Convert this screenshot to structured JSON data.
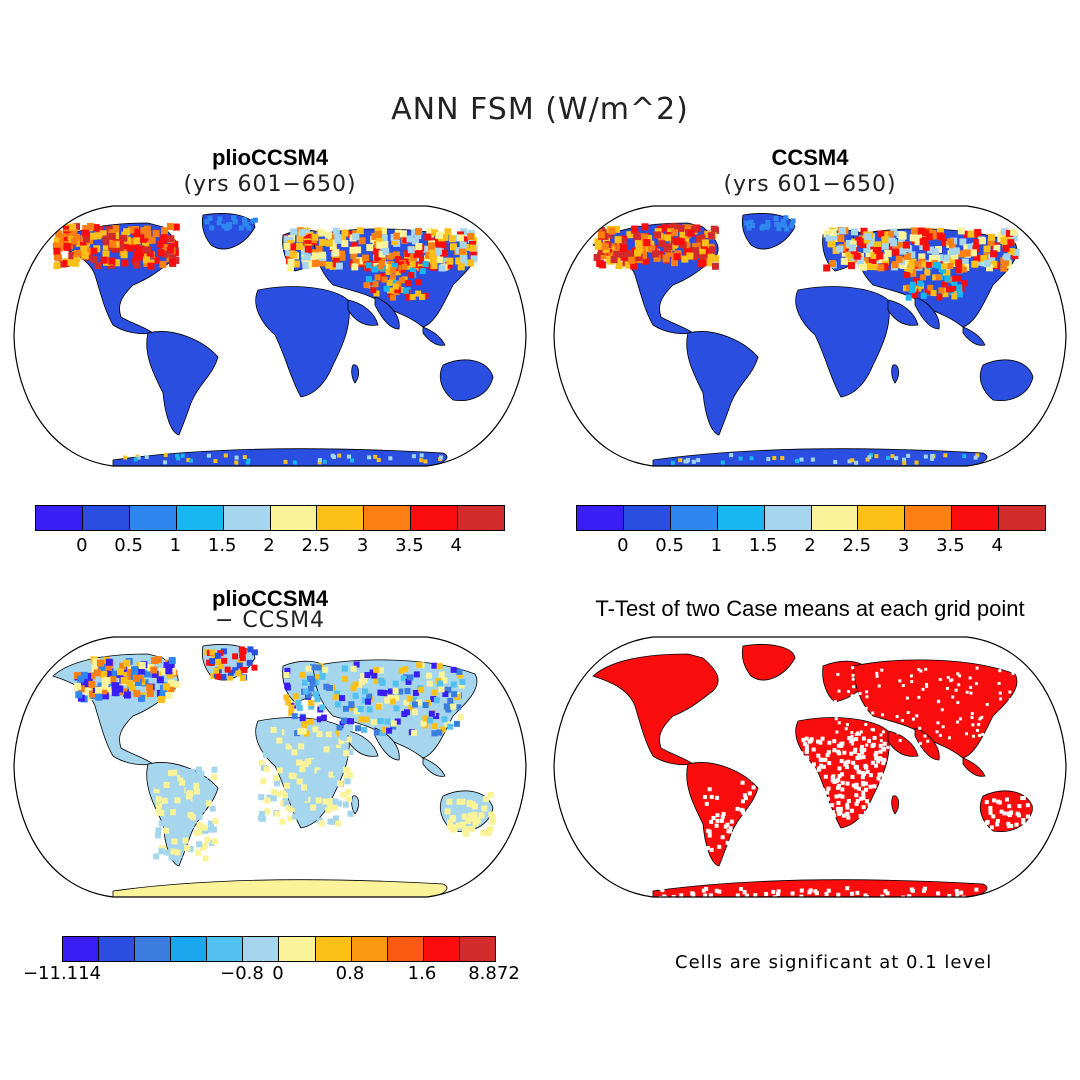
{
  "figure": {
    "title": "ANN FSM (W/m^2)",
    "note": "Cells are significant at 0.1 level"
  },
  "panels": [
    {
      "id": "p1",
      "title": "plioCCSM4",
      "subtitle": "(yrs 601−650)",
      "colorbar": {
        "colors": [
          "#3a1ef5",
          "#2a4fe0",
          "#2e86ee",
          "#19b7f2",
          "#a5d6ee",
          "#fbf39a",
          "#fcc019",
          "#fb7f12",
          "#fb0d0d",
          "#d22b2b"
        ],
        "ticks": [
          "0",
          "0.5",
          "1",
          "1.5",
          "2",
          "2.5",
          "3",
          "3.5",
          "4"
        ]
      }
    },
    {
      "id": "p2",
      "title": "CCSM4",
      "subtitle": "(yrs 601−650)",
      "colorbar": {
        "colors": [
          "#3a1ef5",
          "#2a4fe0",
          "#2e86ee",
          "#19b7f2",
          "#a5d6ee",
          "#fbf39a",
          "#fcc019",
          "#fb7f12",
          "#fb0d0d",
          "#d22b2b"
        ],
        "ticks": [
          "0",
          "0.5",
          "1",
          "1.5",
          "2",
          "2.5",
          "3",
          "3.5",
          "4"
        ]
      }
    },
    {
      "id": "p3",
      "title": "plioCCSM4",
      "subtitle": "− CCSM4",
      "colorbar": {
        "colors": [
          "#3a1ef5",
          "#2a4fe0",
          "#3b7ddf",
          "#1aa7ee",
          "#52c0f0",
          "#a5d6ee",
          "#fbf39a",
          "#fcc019",
          "#fb9a12",
          "#fb5a12",
          "#fb0d0d",
          "#d22b2b"
        ],
        "ticks": [
          "−11.114",
          "−0.8",
          "0",
          "0.8",
          "1.6",
          "8.872"
        ]
      }
    },
    {
      "id": "p4",
      "title": "T-Test of two Case means at each grid point"
    }
  ]
}
